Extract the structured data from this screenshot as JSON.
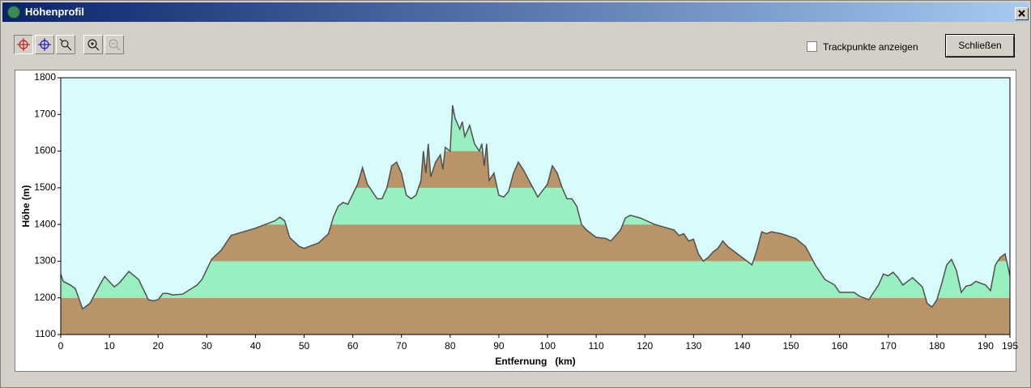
{
  "window": {
    "title": "Höhenprofil",
    "checkbox_label": "Trackpunkte anzeigen",
    "close_button": "Schließen"
  },
  "chart_data": {
    "type": "area",
    "xlabel": "Entfernung   (km)",
    "ylabel": "Höhe (m)",
    "x": [
      0,
      0.5,
      2,
      3,
      4.5,
      5,
      6,
      8,
      9,
      11,
      12,
      14,
      16,
      18,
      19,
      20,
      21,
      22,
      23,
      25,
      28,
      29,
      31,
      33,
      35,
      40,
      44,
      45,
      46,
      47,
      49,
      50,
      52,
      53,
      55,
      56,
      57,
      58,
      59,
      61,
      62,
      63,
      65,
      66,
      67,
      68,
      69,
      70,
      71,
      72,
      73,
      74,
      74.5,
      75,
      75.5,
      76,
      77,
      78,
      78.5,
      79,
      80,
      80.5,
      81,
      82,
      82.5,
      83,
      84,
      85,
      86,
      86.5,
      87,
      87.5,
      88,
      89,
      90,
      91,
      92,
      93,
      94,
      95,
      97,
      98,
      100,
      101,
      102,
      103,
      104,
      105,
      106,
      107,
      108,
      110,
      112,
      113,
      115,
      116,
      117,
      119,
      122,
      126,
      127,
      128,
      129,
      130,
      131,
      132,
      133,
      134,
      135,
      136,
      137,
      140,
      142,
      143,
      144,
      145,
      146,
      148,
      151,
      153,
      155,
      157,
      159,
      160,
      163,
      164,
      166,
      168,
      169,
      170,
      171,
      172,
      173,
      174,
      175,
      177,
      178,
      179,
      180,
      181,
      182,
      183,
      184,
      185,
      186,
      187,
      188,
      190,
      191,
      192,
      193,
      194,
      195
    ],
    "values": [
      1265,
      1245,
      1235,
      1225,
      1170,
      1175,
      1185,
      1235,
      1258,
      1230,
      1240,
      1272,
      1250,
      1195,
      1192,
      1195,
      1212,
      1212,
      1208,
      1210,
      1235,
      1250,
      1305,
      1330,
      1370,
      1390,
      1410,
      1420,
      1410,
      1365,
      1340,
      1335,
      1345,
      1350,
      1375,
      1420,
      1450,
      1460,
      1455,
      1510,
      1555,
      1510,
      1470,
      1470,
      1500,
      1560,
      1570,
      1540,
      1480,
      1470,
      1480,
      1520,
      1600,
      1540,
      1620,
      1530,
      1570,
      1590,
      1550,
      1610,
      1600,
      1725,
      1690,
      1660,
      1680,
      1640,
      1670,
      1620,
      1600,
      1620,
      1560,
      1620,
      1520,
      1540,
      1480,
      1475,
      1490,
      1540,
      1570,
      1550,
      1500,
      1475,
      1510,
      1560,
      1540,
      1500,
      1470,
      1470,
      1450,
      1400,
      1385,
      1365,
      1362,
      1355,
      1385,
      1418,
      1425,
      1418,
      1400,
      1385,
      1370,
      1375,
      1355,
      1360,
      1320,
      1300,
      1310,
      1325,
      1335,
      1355,
      1340,
      1310,
      1290,
      1330,
      1380,
      1375,
      1380,
      1375,
      1362,
      1340,
      1290,
      1250,
      1235,
      1215,
      1215,
      1205,
      1195,
      1235,
      1265,
      1260,
      1270,
      1255,
      1235,
      1245,
      1255,
      1230,
      1185,
      1175,
      1195,
      1240,
      1290,
      1305,
      1275,
      1215,
      1232,
      1235,
      1245,
      1235,
      1220,
      1290,
      1310,
      1320,
      1260
    ],
    "color": "#505050",
    "band_colors": [
      "#b89468",
      "#98f0c0"
    ],
    "background": "#d8fcfc",
    "xlim": [
      0,
      195
    ],
    "xticks": [
      0,
      10,
      20,
      30,
      40,
      50,
      60,
      70,
      80,
      90,
      100,
      110,
      120,
      130,
      140,
      150,
      160,
      170,
      180,
      190,
      195
    ],
    "ylim": [
      1100,
      1800
    ],
    "yticks": [
      1100,
      1200,
      1300,
      1400,
      1500,
      1600,
      1700,
      1800
    ]
  }
}
